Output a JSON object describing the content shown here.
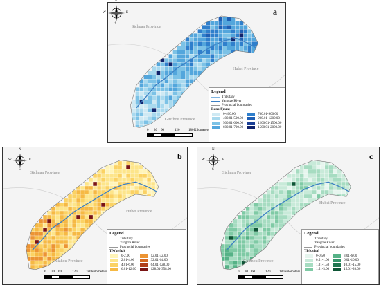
{
  "panels": [
    {
      "letter": "a",
      "province_labels": [
        "Sichuan Province",
        "Hubei Province",
        "Guizhou Province"
      ],
      "legend": {
        "title": "Legend",
        "line_items": [
          "Tributary",
          "Yangtze River",
          "Provincial boundaries"
        ],
        "unit_label": "Runoff(mm)",
        "classes": [
          {
            "label": "0-400.00",
            "color": "#cfe9f3"
          },
          {
            "label": "400.01-500.00",
            "color": "#a9d9ee"
          },
          {
            "label": "500.01-600.00",
            "color": "#7cc2e6"
          },
          {
            "label": "600.01-700.00",
            "color": "#53a6dc"
          },
          {
            "label": "700.01-900.00",
            "color": "#2f7fcc"
          },
          {
            "label": "900.01-1200.00",
            "color": "#1f5fb4"
          },
          {
            "label": "1200.01-1500.00",
            "color": "#1a3f96"
          },
          {
            "label": "1500.01-2000.00",
            "color": "#10226b"
          }
        ]
      },
      "scale": {
        "ticks": [
          "0",
          "30",
          "60",
          "120",
          "180"
        ],
        "unit": "Kilometers"
      }
    },
    {
      "letter": "b",
      "province_labels": [
        "Sichuan Province",
        "Hubei Province",
        "Guizhou Province"
      ],
      "legend": {
        "title": "Legend",
        "line_items": [
          "Tributary",
          "Yangtze River",
          "Provincial boundaries"
        ],
        "unit_label": "TN(kg/ha)",
        "classes": [
          {
            "label": "0-2.00",
            "color": "#fff4b8"
          },
          {
            "label": "2.01-4.00",
            "color": "#fde58a"
          },
          {
            "label": "4.01-6.00",
            "color": "#fbd263"
          },
          {
            "label": "6.01-12.00",
            "color": "#f6b944"
          },
          {
            "label": "12.01-32.00",
            "color": "#ec9433"
          },
          {
            "label": "32.01-64.00",
            "color": "#d56a23"
          },
          {
            "label": "64.01-128.00",
            "color": "#b03f1b"
          },
          {
            "label": "128.01-358.00",
            "color": "#7a1414"
          }
        ]
      },
      "scale": {
        "ticks": [
          "0",
          "30",
          "60",
          "120",
          "180"
        ],
        "unit": "Kilometers"
      }
    },
    {
      "letter": "c",
      "province_labels": [
        "Sichuan Province",
        "Hubei Province",
        "Guizhou Province"
      ],
      "legend": {
        "title": "Legend",
        "line_items": [
          "Tributary",
          "Yangtze River",
          "Provincial boundaries"
        ],
        "unit_label": "TP(kg/ha)",
        "classes": [
          {
            "label": "0-0.50",
            "color": "#e6f5ee"
          },
          {
            "label": "0.51-1.00",
            "color": "#c8ead9"
          },
          {
            "label": "1.01-1.50",
            "color": "#a6dcc1"
          },
          {
            "label": "1.51-3.00",
            "color": "#7fcaa5"
          },
          {
            "label": "3.01-6.00",
            "color": "#56b287"
          },
          {
            "label": "6.01-10.00",
            "color": "#35956b"
          },
          {
            "label": "10.01-15.00",
            "color": "#1f7650"
          },
          {
            "label": "15.01-20.00",
            "color": "#0e5536"
          }
        ]
      },
      "scale": {
        "ticks": [
          "0",
          "30",
          "60",
          "120",
          "180"
        ],
        "unit": "Kilometers"
      }
    }
  ],
  "compass": {
    "n": "N",
    "s": "S",
    "e": "E",
    "w": "W"
  },
  "river_color": "#3b7fc4"
}
